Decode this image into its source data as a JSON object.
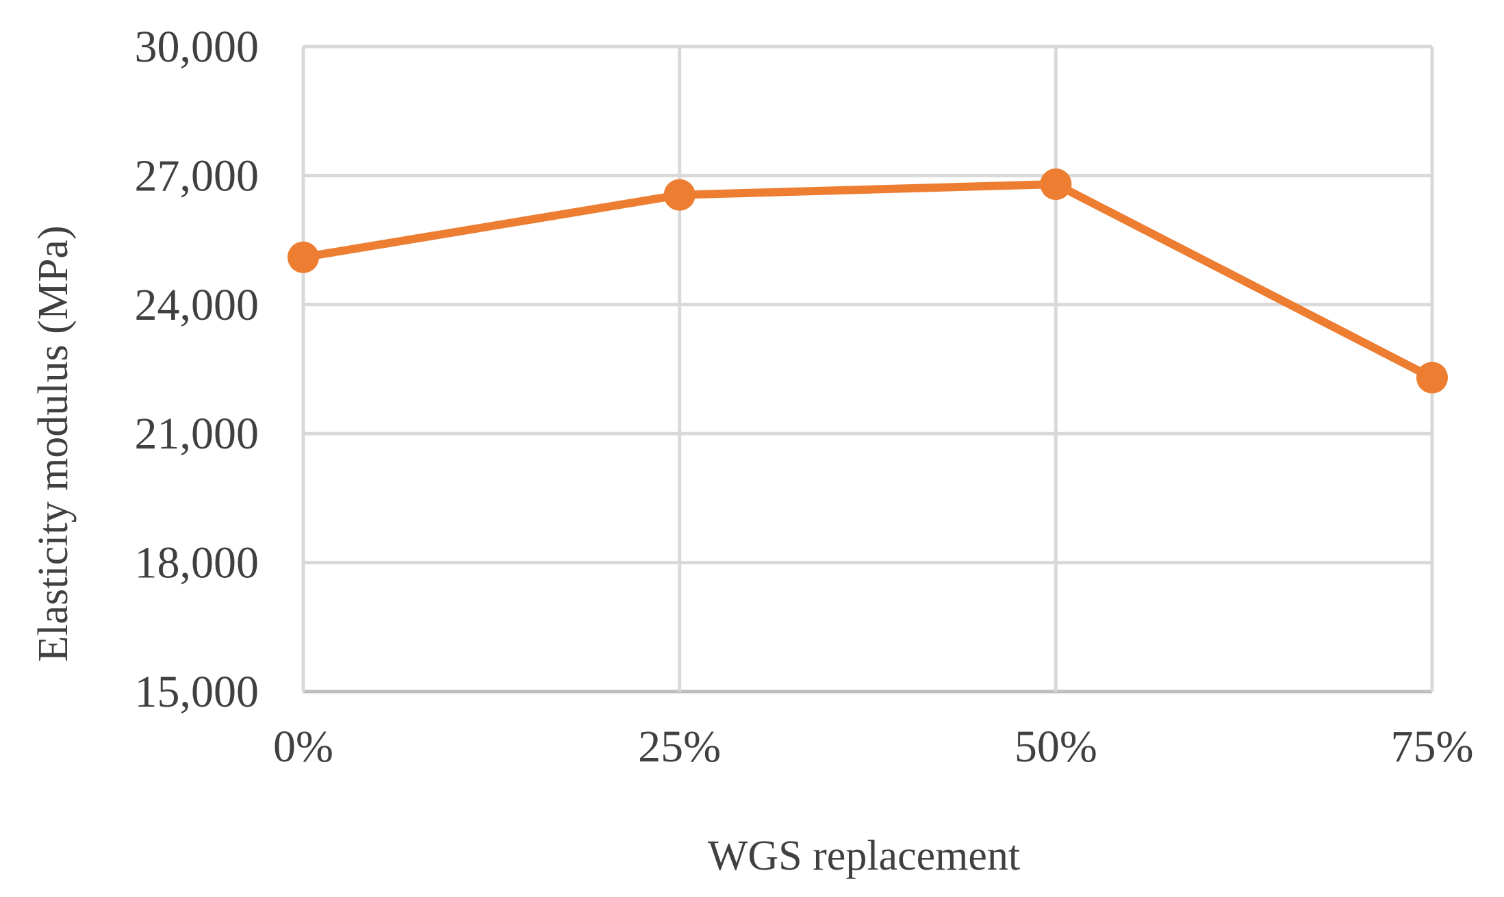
{
  "chart_data": {
    "type": "line",
    "categories": [
      "0%",
      "25%",
      "50%",
      "75%"
    ],
    "series": [
      {
        "values": [
          25100,
          26550,
          26800,
          22300
        ]
      }
    ],
    "xlabel": "WGS replacement",
    "ylabel": "Elasticity modulus (MPa)",
    "ylim": [
      15000,
      30000
    ],
    "yticks": [
      15000,
      18000,
      21000,
      24000,
      27000,
      30000
    ],
    "ytick_labels": [
      "15,000",
      "18,000",
      "21,000",
      "24,000",
      "27,000",
      "30,000"
    ],
    "grid": true,
    "legend": "none",
    "colors": {
      "series": "#ed7d31",
      "grid": "#d9d9d9",
      "text": "#404040"
    }
  }
}
